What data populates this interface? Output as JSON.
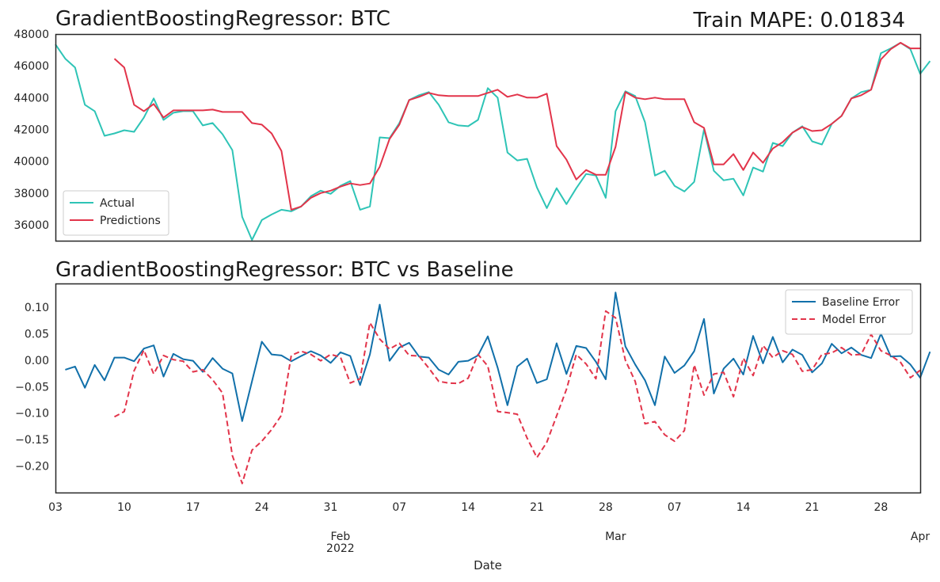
{
  "chart_data": [
    {
      "type": "line",
      "title": "GradientBoostingRegressor: BTC",
      "annotation": "Train MAPE: 0.01834",
      "xlabel": "",
      "ylabel": "",
      "x_start": "2022-01-03",
      "x_end": "2022-04-01",
      "ylim": [
        35000,
        48000
      ],
      "yticks": [
        36000,
        38000,
        40000,
        42000,
        44000,
        46000,
        48000
      ],
      "grid": false,
      "legend_position": "lower-left",
      "series": [
        {
          "name": "Actual",
          "color": "#2ec4b6",
          "style": "solid",
          "x_start": "2022-01-03",
          "values": [
            47350,
            46450,
            45900,
            43550,
            43150,
            41600,
            41750,
            41950,
            41850,
            42750,
            43950,
            42600,
            43050,
            43150,
            43150,
            42250,
            42400,
            41700,
            40700,
            36500,
            35050,
            36300,
            36650,
            36950,
            36850,
            37150,
            37800,
            38150,
            37950,
            38450,
            38750,
            36950,
            37150,
            41500,
            41450,
            42400,
            43850,
            44150,
            44350,
            43550,
            42450,
            42250,
            42200,
            42600,
            44600,
            44000,
            40550,
            40050,
            40150,
            38350,
            37050,
            38300,
            37300,
            38300,
            39200,
            39100,
            37700,
            43150,
            44400,
            44100,
            42450,
            39100,
            39400,
            38450,
            38100,
            38700,
            42000,
            39400,
            38800,
            38900,
            37850,
            39600,
            39350,
            41150,
            40950,
            41800,
            42200,
            41250,
            41050,
            42350,
            42850,
            43950,
            44350,
            44500,
            46800,
            47100,
            47450,
            47050,
            45500,
            46300
          ]
        },
        {
          "name": "Predictions",
          "color": "#e2344a",
          "style": "solid",
          "x_start": "2022-01-09",
          "values": [
            46450,
            45900,
            43550,
            43150,
            43600,
            42750,
            43200,
            43200,
            43200,
            43200,
            43250,
            43100,
            43100,
            43100,
            42400,
            42300,
            41750,
            40650,
            36950,
            37150,
            37700,
            38000,
            38150,
            38400,
            38600,
            38500,
            38600,
            39650,
            41400,
            42300,
            43850,
            44050,
            44300,
            44150,
            44100,
            44100,
            44100,
            44100,
            44300,
            44500,
            44050,
            44200,
            44000,
            44000,
            44250,
            40950,
            40100,
            38850,
            39450,
            39150,
            39150,
            40900,
            44350,
            44000,
            43900,
            44000,
            43900,
            43900,
            43900,
            42450,
            42100,
            39800,
            39800,
            40450,
            39450,
            40550,
            39900,
            40800,
            41200,
            41800,
            42150,
            41900,
            41950,
            42350,
            42850,
            43950,
            44150,
            44500,
            46400,
            47050,
            47450,
            47100,
            47100
          ]
        }
      ]
    },
    {
      "type": "line",
      "title": "GradientBoostingRegressor: BTC vs Baseline",
      "xlabel": "Date",
      "ylabel": "",
      "x_start": "2022-01-03",
      "x_end": "2022-04-01",
      "ylim": [
        -0.25,
        0.145
      ],
      "yticks": [
        -0.2,
        -0.15,
        -0.1,
        -0.05,
        0.0,
        0.05,
        0.1
      ],
      "ytick_labels": [
        "−0.20",
        "−0.15",
        "−0.10",
        "−0.05",
        "0.00",
        "0.05",
        "0.10"
      ],
      "xticks": [
        {
          "date": "2022-01-03",
          "label": "03",
          "sublabel": ""
        },
        {
          "date": "2022-01-10",
          "label": "10",
          "sublabel": ""
        },
        {
          "date": "2022-01-17",
          "label": "17",
          "sublabel": ""
        },
        {
          "date": "2022-01-24",
          "label": "24",
          "sublabel": ""
        },
        {
          "date": "2022-01-31",
          "label": "31",
          "sublabel": ""
        },
        {
          "date": "2022-02-01",
          "label": "",
          "sublabel": "Feb",
          "sublabel2": "2022"
        },
        {
          "date": "2022-02-07",
          "label": "07",
          "sublabel": ""
        },
        {
          "date": "2022-02-14",
          "label": "14",
          "sublabel": ""
        },
        {
          "date": "2022-02-21",
          "label": "21",
          "sublabel": ""
        },
        {
          "date": "2022-02-28",
          "label": "28",
          "sublabel": ""
        },
        {
          "date": "2022-03-01",
          "label": "",
          "sublabel": "Mar"
        },
        {
          "date": "2022-03-07",
          "label": "07",
          "sublabel": ""
        },
        {
          "date": "2022-03-14",
          "label": "14",
          "sublabel": ""
        },
        {
          "date": "2022-03-21",
          "label": "21",
          "sublabel": ""
        },
        {
          "date": "2022-03-28",
          "label": "28",
          "sublabel": ""
        },
        {
          "date": "2022-04-01",
          "label": "",
          "sublabel": "Apr"
        }
      ],
      "grid": false,
      "legend_position": "upper-right",
      "series": [
        {
          "name": "Baseline Error",
          "color": "#1170aa",
          "style": "solid",
          "x_start": "2022-01-04",
          "values": [
            -0.018,
            -0.012,
            -0.052,
            -0.009,
            -0.038,
            0.005,
            0.005,
            -0.002,
            0.022,
            0.028,
            -0.031,
            0.012,
            0.002,
            -0.001,
            -0.022,
            0.004,
            -0.016,
            -0.025,
            -0.115,
            -0.04,
            0.035,
            0.011,
            0.009,
            -0.002,
            0.008,
            0.017,
            0.009,
            -0.005,
            0.015,
            0.008,
            -0.047,
            0.011,
            0.105,
            -0.001,
            0.024,
            0.033,
            0.007,
            0.005,
            -0.018,
            -0.027,
            -0.003,
            -0.001,
            0.009,
            0.045,
            -0.014,
            -0.085,
            -0.012,
            0.003,
            -0.043,
            -0.036,
            0.032,
            -0.026,
            0.027,
            0.023,
            -0.003,
            -0.036,
            0.128,
            0.026,
            -0.008,
            -0.038,
            -0.085,
            0.007,
            -0.024,
            -0.01,
            0.017,
            0.078,
            -0.063,
            -0.016,
            0.003,
            -0.027,
            0.046,
            -0.006,
            0.044,
            -0.004,
            0.02,
            0.01,
            -0.023,
            -0.006,
            0.031,
            0.013,
            0.024,
            0.01,
            0.004,
            0.05,
            0.007,
            0.008,
            -0.008,
            -0.033,
            0.016
          ]
        },
        {
          "name": "Model Error",
          "color": "#e2344a",
          "style": "dashed",
          "x_start": "2022-01-09",
          "values": [
            -0.107,
            -0.097,
            -0.02,
            0.019,
            -0.026,
            0.009,
            0.001,
            -0.002,
            -0.022,
            -0.018,
            -0.037,
            -0.062,
            -0.18,
            -0.233,
            -0.17,
            -0.153,
            -0.131,
            -0.104,
            0.009,
            0.017,
            0.011,
            -0.001,
            0.011,
            0.006,
            -0.043,
            -0.035,
            0.071,
            0.04,
            0.021,
            0.032,
            0.009,
            0.008,
            -0.015,
            -0.04,
            -0.043,
            -0.044,
            -0.034,
            0.011,
            -0.011,
            -0.097,
            -0.099,
            -0.102,
            -0.147,
            -0.184,
            -0.155,
            -0.105,
            -0.055,
            0.011,
            -0.007,
            -0.035,
            0.093,
            0.08,
            0.0,
            -0.04,
            -0.12,
            -0.116,
            -0.141,
            -0.153,
            -0.133,
            -0.009,
            -0.066,
            -0.026,
            -0.023,
            -0.069,
            0.004,
            -0.029,
            0.028,
            0.005,
            0.018,
            0.011,
            -0.021,
            -0.018,
            0.011,
            0.014,
            0.024,
            0.01,
            0.011,
            0.049,
            0.018,
            0.009,
            -0.004,
            -0.033,
            -0.019
          ]
        }
      ]
    }
  ]
}
